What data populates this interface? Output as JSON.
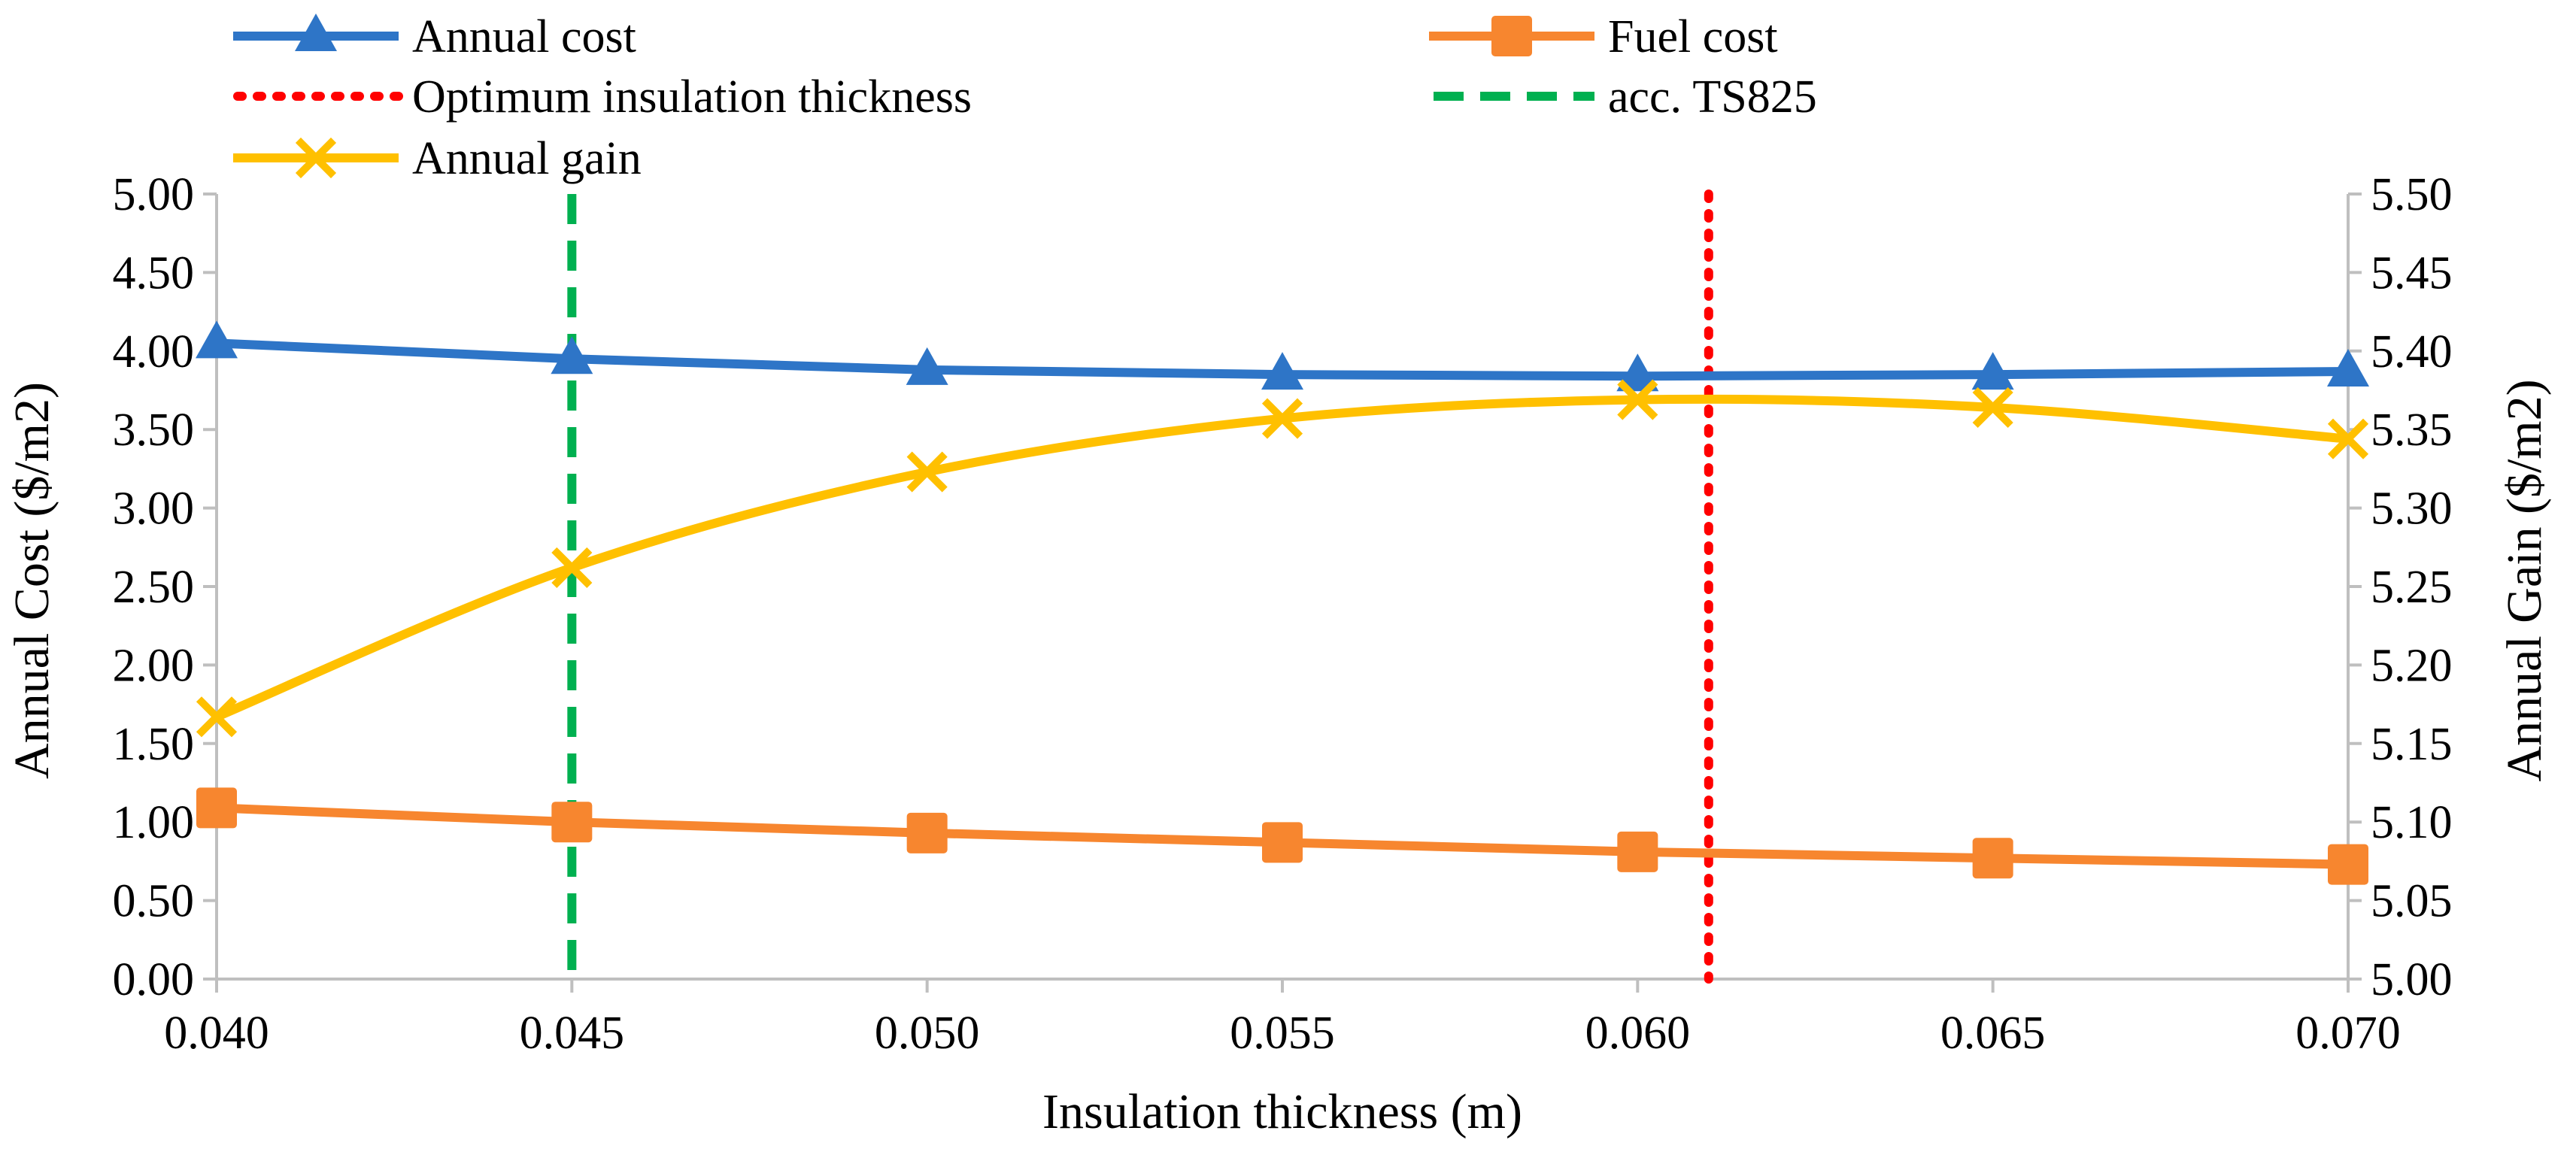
{
  "chart_data": {
    "type": "line",
    "xlabel": "Insulation thickness (m)",
    "ylabel": "Annual Cost ($/m2)",
    "ylabel_right": "Annual Gain ($/m2)",
    "x": [
      0.04,
      0.045,
      0.05,
      0.055,
      0.06,
      0.065,
      0.07
    ],
    "x_tick_labels": [
      "0.040",
      "0.045",
      "0.050",
      "0.055",
      "0.060",
      "0.065",
      "0.070"
    ],
    "xlim": [
      0.04,
      0.07
    ],
    "ylim": [
      0,
      5
    ],
    "ylim_right": [
      5.0,
      5.5
    ],
    "y_tick_labels": [
      "0.00",
      "0.50",
      "1.00",
      "1.50",
      "2.00",
      "2.50",
      "3.00",
      "3.50",
      "4.00",
      "4.50",
      "5.00"
    ],
    "y_tick_labels_right": [
      "5.00",
      "5.05",
      "5.10",
      "5.15",
      "5.20",
      "5.25",
      "5.30",
      "5.35",
      "5.40",
      "5.45",
      "5.50"
    ],
    "grid": false,
    "series": [
      {
        "name": "Annual cost",
        "axis": "left",
        "color": "#2E75C7",
        "marker": "triangle",
        "values": [
          4.05,
          3.95,
          3.88,
          3.85,
          3.84,
          3.85,
          3.87
        ]
      },
      {
        "name": "Fuel cost",
        "axis": "left",
        "color": "#F7862F",
        "marker": "square",
        "values": [
          1.09,
          1.0,
          0.93,
          0.87,
          0.81,
          0.77,
          0.73
        ]
      },
      {
        "name": "Annual gain",
        "axis": "right",
        "color": "#FFC000",
        "marker": "x",
        "smooth": true,
        "values": [
          5.167,
          5.262,
          5.323,
          5.357,
          5.369,
          5.364,
          5.344
        ]
      }
    ],
    "reference_lines": [
      {
        "name": "Optimum insulation thickness",
        "x": 0.061,
        "color": "#FF0000",
        "style": "dotted"
      },
      {
        "name": "acc. TS825",
        "x": 0.045,
        "color": "#00B050",
        "style": "dashed"
      }
    ],
    "legend": {
      "placement": "top",
      "entries": [
        "Annual cost",
        "Fuel cost",
        "Optimum insulation thickness",
        "acc. TS825",
        "Annual gain"
      ]
    }
  }
}
